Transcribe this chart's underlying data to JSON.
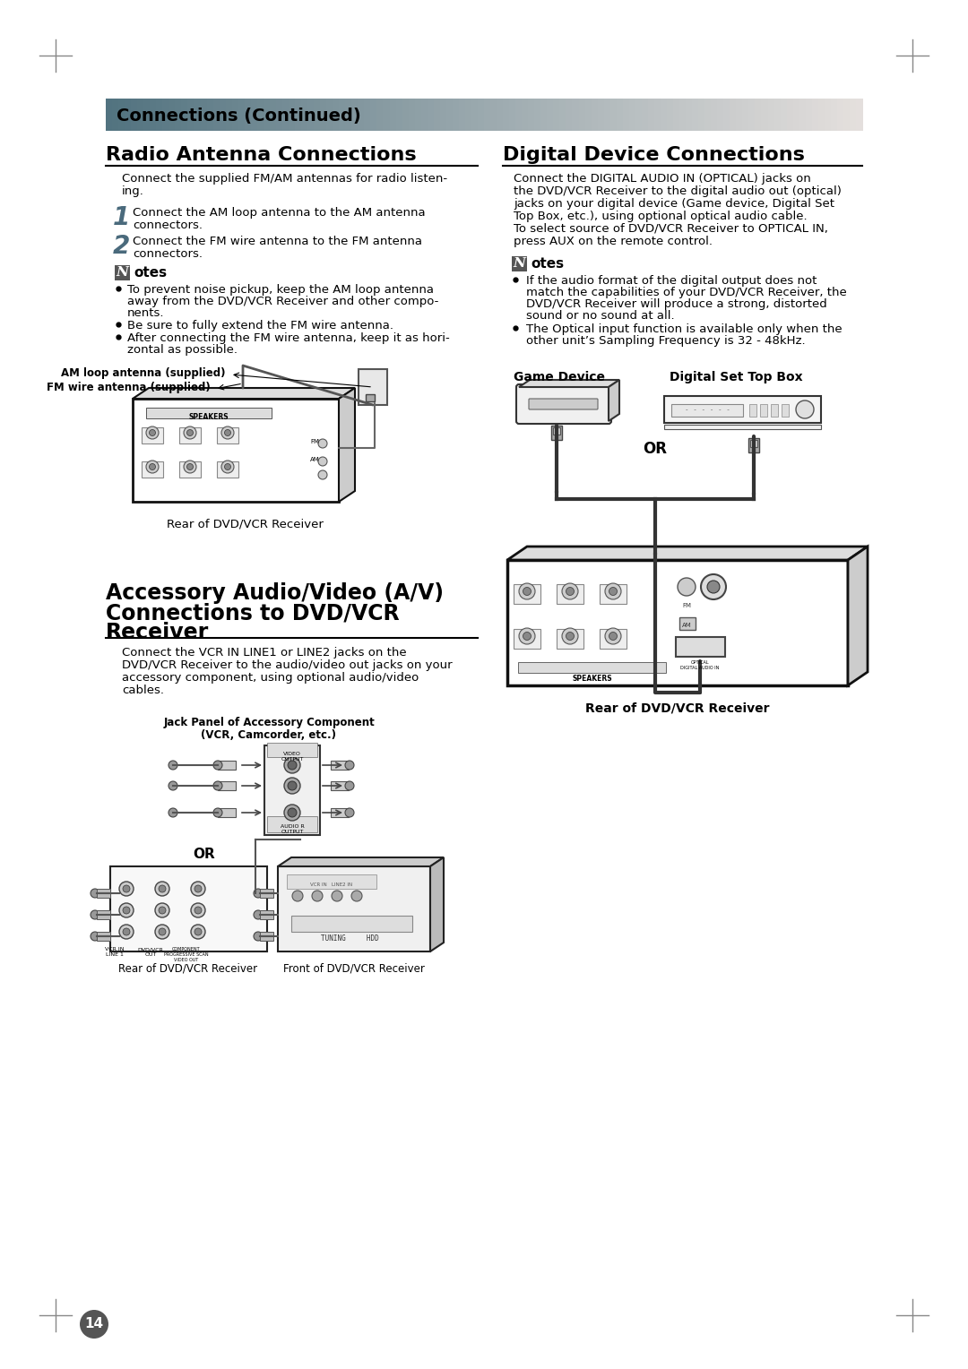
{
  "page_bg": "#ffffff",
  "margin_color": "#888888",
  "header_text": "Connections (Continued)",
  "header_font_size": 14,
  "left_title": "Radio Antenna Connections",
  "right_title": "Digital Device Connections",
  "title_size": 16,
  "left_body_lines": [
    "Connect the supplied FM/AM antennas for radio listen-",
    "ing."
  ],
  "step1_lines": [
    "Connect the AM loop antenna to the AM antenna",
    "connectors."
  ],
  "step2_lines": [
    "Connect the FM wire antenna to the FM antenna",
    "connectors."
  ],
  "notes_left": [
    [
      "To prevent noise pickup, keep the AM loop antenna",
      "away from the DVD/VCR Receiver and other compo-",
      "nents."
    ],
    [
      "Be sure to fully extend the FM wire antenna."
    ],
    [
      "After connecting the FM wire antenna, keep it as hori-",
      "zontal as possible."
    ]
  ],
  "antenna_label1": "AM loop antenna (supplied)",
  "antenna_label2": "FM wire antenna (supplied)",
  "rear_label_left": "Rear of DVD/VCR Receiver",
  "mid_title_lines": [
    "Accessory Audio/Video (A/V)",
    "Connections to DVD/VCR",
    "Receiver"
  ],
  "mid_body_lines": [
    "Connect the VCR IN LINE1 or LINE2 jacks on the",
    "DVD/VCR Receiver to the audio/video out jacks on your",
    "accessory component, using optional audio/video",
    "cables."
  ],
  "jack_panel_line1": "Jack Panel of Accessory Component",
  "jack_panel_line2": "(VCR, Camcorder, etc.)",
  "or_label": "OR",
  "rear_bottom": "Rear of DVD/VCR Receiver",
  "front_bottom": "Front of DVD/VCR Receiver",
  "right_body_lines": [
    "Connect the DIGITAL AUDIO IN (OPTICAL) jacks on",
    "the DVD/VCR Receiver to the digital audio out (optical)",
    "jacks on your digital device (Game device, Digital Set",
    "Top Box, etc.), using optional optical audio cable.",
    "To select source of DVD/VCR Receiver to OPTICAL IN,",
    "press AUX on the remote control."
  ],
  "notes_right": [
    [
      "If the audio format of the digital output does not",
      "match the capabilities of your DVD/VCR Receiver, the",
      "DVD/VCR Receiver will produce a strong, distorted",
      "sound or no sound at all."
    ],
    [
      "The Optical input function is available only when the",
      "other unit’s Sampling Frequency is 32 - 48kHz."
    ]
  ],
  "game_label": "Game Device",
  "dst_label": "Digital Set Top Box",
  "or_right": "OR",
  "rear_right": "Rear of DVD/VCR Receiver",
  "page_number": "14",
  "body_fs": 9.5,
  "small_fs": 8.5
}
